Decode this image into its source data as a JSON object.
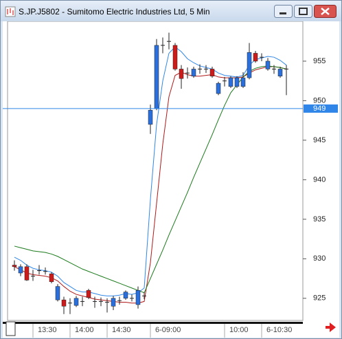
{
  "window": {
    "title": "S.JP.J5802 - Sumitomo Electric Industries Ltd, 5 Min"
  },
  "chart_data": {
    "type": "candlestick",
    "categories": [
      null,
      null,
      null,
      "13:30",
      null,
      null,
      null,
      null,
      null,
      "14:00",
      null,
      null,
      null,
      null,
      null,
      "14:30",
      null,
      null,
      null,
      null,
      null,
      null,
      "6-09:00",
      null,
      null,
      null,
      null,
      null,
      null,
      null,
      null,
      null,
      null,
      null,
      "10:00",
      null,
      null,
      null,
      null,
      null,
      "6-10:30",
      null,
      null,
      null,
      null
    ],
    "open": [
      929.2,
      928.2,
      929.0,
      927.8,
      928.5,
      928.4,
      928.1,
      924.8,
      924.8,
      924.4,
      924.1,
      924.6,
      926.0,
      924.6,
      924.6,
      924.5,
      924.0,
      924.7,
      925.0,
      925.0,
      924.2,
      925.3,
      947.0,
      949.0,
      957.0,
      957.5,
      957.0,
      954.0,
      953.5,
      953.1,
      954.0,
      954.0,
      954.0,
      950.9,
      952.5,
      951.8,
      951.8,
      951.8,
      952.9,
      956.0,
      955.5,
      954.0,
      954.0,
      953.1,
      954.0
    ],
    "high": [
      929.8,
      929.3,
      929.3,
      928.6,
      929.2,
      928.9,
      928.3,
      926.8,
      925.2,
      925.0,
      925.3,
      925.2,
      926.2,
      925.2,
      925.1,
      925.0,
      925.3,
      925.2,
      926.0,
      925.5,
      926.5,
      925.8,
      949.5,
      957.8,
      958.0,
      958.6,
      957.3,
      954.5,
      954.2,
      954.3,
      954.6,
      954.5,
      954.3,
      952.4,
      953.0,
      953.1,
      953.1,
      953.6,
      957.3,
      956.3,
      956.0,
      955.4,
      954.5,
      954.3,
      954.5
    ],
    "low": [
      928.5,
      927.8,
      927.2,
      927.2,
      928.0,
      928.0,
      926.9,
      924.6,
      923.0,
      923.0,
      923.9,
      924.0,
      924.9,
      923.8,
      924.0,
      923.2,
      923.5,
      924.2,
      924.8,
      924.6,
      923.7,
      924.9,
      945.8,
      948.8,
      956.0,
      956.5,
      953.8,
      951.5,
      952.8,
      952.9,
      953.4,
      953.5,
      952.9,
      950.7,
      951.8,
      951.6,
      951.6,
      951.6,
      952.7,
      954.8,
      955.0,
      953.8,
      953.4,
      952.9,
      950.7
    ],
    "close": [
      929.0,
      929.0,
      927.3,
      927.8,
      928.5,
      928.4,
      927.1,
      926.5,
      924.0,
      924.4,
      925.0,
      924.6,
      925.1,
      924.6,
      924.6,
      924.5,
      925.0,
      924.7,
      925.8,
      925.0,
      926.0,
      925.3,
      948.8,
      957.0,
      957.0,
      957.5,
      954.0,
      952.8,
      953.5,
      954.0,
      954.0,
      954.0,
      953.1,
      952.2,
      952.5,
      952.9,
      952.9,
      952.9,
      956.1,
      955.0,
      955.5,
      955.0,
      954.0,
      954.0,
      954.0
    ],
    "up_color": "#2a6fdb",
    "down_color": "#cc1b1b",
    "doji_color": "#222222",
    "series": [
      {
        "color": "#2f86e8",
        "values": [
          930.2,
          929.8,
          929.2,
          928.8,
          928.6,
          928.5,
          928.3,
          927.8,
          927.0,
          926.5,
          926.0,
          925.8,
          925.8,
          925.6,
          925.4,
          925.3,
          925.3,
          925.4,
          925.6,
          925.5,
          925.7,
          926.3,
          937.5,
          947.0,
          952.5,
          956.0,
          956.8,
          956.2,
          955.3,
          954.8,
          954.4,
          954.2,
          954.0,
          953.5,
          953.2,
          953.1,
          953.0,
          953.2,
          954.5,
          955.2,
          955.4,
          955.6,
          955.5,
          955.1,
          954.5
        ]
      },
      {
        "color": "#b01818",
        "values": [
          929.0,
          928.6,
          928.2,
          928.0,
          927.9,
          927.8,
          927.6,
          927.2,
          926.5,
          925.9,
          925.5,
          925.3,
          925.1,
          924.9,
          924.8,
          924.7,
          924.6,
          924.5,
          924.5,
          924.4,
          924.4,
          924.6,
          929.5,
          937.0,
          944.5,
          950.5,
          953.2,
          953.6,
          953.3,
          953.1,
          953.1,
          953.2,
          953.3,
          953.0,
          952.9,
          952.9,
          952.9,
          953.0,
          953.5,
          953.9,
          954.1,
          954.3,
          954.3,
          954.2,
          954.0
        ]
      },
      {
        "color": "#1a7a1a",
        "values": [
          931.6,
          931.4,
          931.2,
          931.0,
          930.9,
          930.8,
          930.6,
          930.3,
          929.9,
          929.5,
          929.1,
          928.7,
          928.4,
          928.1,
          927.8,
          927.5,
          927.2,
          926.9,
          926.6,
          926.3,
          926.0,
          925.7,
          927.5,
          929.3,
          931.1,
          933.0,
          934.8,
          936.6,
          938.4,
          940.3,
          942.1,
          943.9,
          945.7,
          947.6,
          949.4,
          951.0,
          952.0,
          953.0,
          953.7,
          954.1,
          954.3,
          954.4,
          954.3,
          954.2,
          954.0
        ]
      }
    ],
    "price_line": {
      "value": 949,
      "color": "#2f86e8"
    },
    "ylim": [
      922.2,
      960.04
    ],
    "yticks": [
      925,
      930,
      935,
      940,
      945,
      950,
      955
    ]
  }
}
